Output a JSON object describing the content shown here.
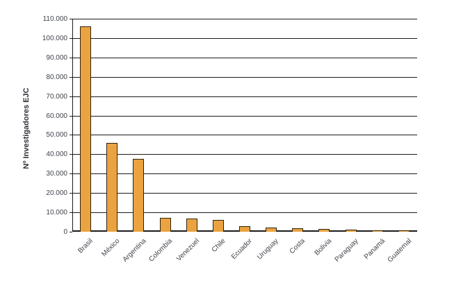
{
  "chart_data": {
    "type": "bar",
    "title": "",
    "xlabel": "",
    "ylabel": "Nº Investigadores EJC",
    "categories": [
      "Brasil",
      "México",
      "Argentina",
      "Colombia",
      "Venezuel",
      "Chile",
      "Ecuador",
      "Uruguay",
      "Costa",
      "Bolivia",
      "Paraguay",
      "Panamá",
      "Guatemal"
    ],
    "values": [
      106000,
      46000,
      37500,
      7200,
      6900,
      6200,
      2800,
      2000,
      1900,
      1500,
      1200,
      800,
      700
    ],
    "ylim": [
      0,
      110000
    ],
    "ytick_step": 10000,
    "ytick_labels": [
      "0",
      "10.000",
      "20.000",
      "30.000",
      "40.000",
      "50.000",
      "60.000",
      "70.000",
      "80.000",
      "90.000",
      "100.000",
      "110.000"
    ],
    "grid": true,
    "legend": false,
    "colors": {
      "bar_fill": "#EBA33F",
      "bar_border": "#2B2313",
      "grid_line": "#1A1A1A",
      "axis_line": "#1A1A1A",
      "tick_text": "#3F4249",
      "title_text": "#2F3239",
      "background": "#FFFFFF"
    }
  }
}
